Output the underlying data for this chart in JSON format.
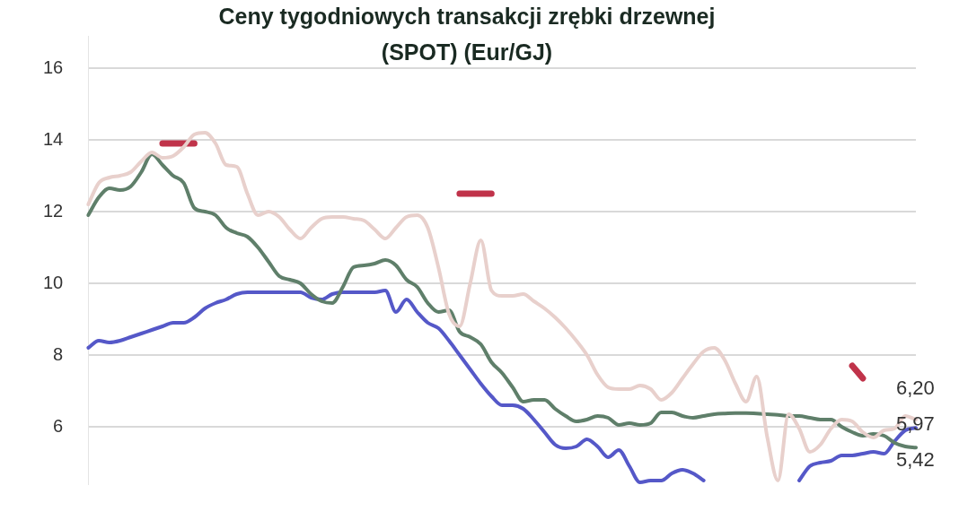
{
  "chart_data": {
    "type": "line",
    "title": "Ceny tygodniowych transakcji zrębki drzewnej\n(SPOT) (Eur/GJ)",
    "categories": [
      null,
      null,
      null,
      null,
      null,
      null,
      null,
      null,
      null,
      null,
      null,
      null,
      null,
      null,
      null,
      null,
      null,
      null,
      null,
      null,
      null,
      null,
      null,
      null,
      null,
      null,
      null,
      null,
      null,
      null,
      null,
      null,
      null,
      null,
      null,
      null,
      null,
      null,
      null,
      null,
      null,
      null,
      null,
      null,
      null,
      null,
      null,
      null,
      null,
      null,
      null,
      null,
      null,
      null,
      null,
      null,
      null,
      null,
      null,
      null,
      null,
      null,
      null,
      null,
      null,
      null,
      null,
      null,
      null,
      null,
      null,
      null,
      null,
      null,
      null,
      null,
      null,
      null,
      null
    ],
    "series": [
      {
        "color": "#e8d0cc",
        "values": [
          12.2,
          12.8,
          12.95,
          13.0,
          13.1,
          13.4,
          13.65,
          13.5,
          13.55,
          13.8,
          14.15,
          14.2,
          13.9,
          13.3,
          13.25,
          12.5,
          11.9,
          12.0,
          11.85,
          11.5,
          11.25,
          11.55,
          11.8,
          11.85,
          11.85,
          11.8,
          11.75,
          11.5,
          11.25,
          11.55,
          11.85,
          11.9,
          11.55,
          10.45,
          9.15,
          8.8,
          10.0,
          11.2,
          9.8,
          9.65,
          9.65,
          9.7,
          9.5,
          9.3,
          9.05,
          8.75,
          8.4,
          8.0,
          7.45,
          7.1,
          7.05,
          7.05,
          7.15,
          7.05,
          6.75,
          6.95,
          7.35,
          7.75,
          8.1,
          8.2,
          7.85,
          7.2,
          6.7,
          7.4,
          5.7,
          4.5,
          6.35,
          5.95,
          5.3,
          5.5,
          5.95,
          6.2,
          6.15,
          5.85,
          5.7,
          5.9,
          5.95,
          6.3,
          6.2
        ],
        "value_labels": [
          null,
          null,
          null,
          null,
          null,
          null,
          null,
          null,
          null,
          null,
          null,
          null,
          null,
          null,
          null,
          null,
          null,
          null,
          null,
          null,
          null,
          null,
          null,
          null,
          null,
          null,
          null,
          null,
          null,
          null,
          null,
          null,
          null,
          null,
          null,
          null,
          null,
          null,
          null,
          null,
          null,
          null,
          null,
          null,
          null,
          null,
          null,
          null,
          null,
          null,
          null,
          null,
          null,
          null,
          null,
          null,
          null,
          null,
          null,
          null,
          null,
          null,
          null,
          null,
          null,
          null,
          null,
          null,
          null,
          null,
          null,
          null,
          null,
          null,
          null,
          null,
          null,
          null,
          "6,20"
        ]
      },
      {
        "color": "#5f7f6a",
        "values": [
          11.9,
          12.4,
          12.65,
          12.6,
          12.7,
          13.1,
          13.6,
          13.3,
          13.0,
          12.8,
          12.1,
          12.0,
          11.9,
          11.55,
          11.4,
          11.3,
          11.0,
          10.6,
          10.2,
          10.1,
          10.0,
          9.7,
          9.5,
          9.45,
          9.9,
          10.45,
          10.5,
          10.55,
          10.65,
          10.5,
          10.1,
          9.9,
          9.45,
          9.2,
          9.25,
          8.65,
          8.5,
          8.3,
          7.8,
          7.5,
          7.1,
          6.7,
          6.75,
          6.75,
          6.5,
          6.3,
          6.15,
          6.2,
          6.3,
          6.25,
          6.05,
          6.1,
          6.05,
          6.1,
          6.4,
          6.4,
          6.3,
          6.25,
          6.3,
          6.35,
          6.37,
          6.38,
          6.38,
          6.37,
          6.35,
          6.33,
          6.3,
          6.3,
          6.25,
          6.2,
          6.2,
          6.0,
          5.85,
          5.75,
          5.8,
          5.75,
          5.55,
          5.45,
          5.42
        ],
        "value_labels": [
          null,
          null,
          null,
          null,
          null,
          null,
          null,
          null,
          null,
          null,
          null,
          null,
          null,
          null,
          null,
          null,
          null,
          null,
          null,
          null,
          null,
          null,
          null,
          null,
          null,
          null,
          null,
          null,
          null,
          null,
          null,
          null,
          null,
          null,
          null,
          null,
          null,
          null,
          null,
          null,
          null,
          null,
          null,
          null,
          null,
          null,
          null,
          null,
          null,
          null,
          null,
          null,
          null,
          null,
          null,
          null,
          null,
          null,
          null,
          null,
          null,
          null,
          null,
          null,
          null,
          null,
          null,
          null,
          null,
          null,
          null,
          null,
          null,
          null,
          null,
          null,
          null,
          null,
          "5,42"
        ]
      },
      {
        "color": "#5558c8",
        "values": [
          8.2,
          8.4,
          8.35,
          8.4,
          8.5,
          8.6,
          8.7,
          8.8,
          8.9,
          8.9,
          9.05,
          9.3,
          9.45,
          9.55,
          9.7,
          9.75,
          9.75,
          9.75,
          9.75,
          9.75,
          9.75,
          9.6,
          9.55,
          9.7,
          9.75,
          9.75,
          9.75,
          9.75,
          9.8,
          9.2,
          9.55,
          9.2,
          8.9,
          8.75,
          8.4,
          8.0,
          7.6,
          7.2,
          6.85,
          6.6,
          6.6,
          6.5,
          6.2,
          5.85,
          5.5,
          5.4,
          5.45,
          5.65,
          5.45,
          5.15,
          5.35,
          4.9,
          4.45,
          4.5,
          4.5,
          4.7,
          4.8,
          4.7,
          4.5,
          null,
          null,
          null,
          null,
          null,
          null,
          null,
          null,
          4.5,
          4.9,
          5.0,
          5.05,
          5.2,
          5.2,
          5.25,
          5.3,
          5.25,
          5.6,
          5.9,
          5.97
        ],
        "value_labels": [
          null,
          null,
          null,
          null,
          null,
          null,
          null,
          null,
          null,
          null,
          null,
          null,
          null,
          null,
          null,
          null,
          null,
          null,
          null,
          null,
          null,
          null,
          null,
          null,
          null,
          null,
          null,
          null,
          null,
          null,
          null,
          null,
          null,
          null,
          null,
          null,
          null,
          null,
          null,
          null,
          null,
          null,
          null,
          null,
          null,
          null,
          null,
          null,
          null,
          null,
          null,
          null,
          null,
          null,
          null,
          null,
          null,
          null,
          null,
          null,
          null,
          null,
          null,
          null,
          null,
          null,
          null,
          null,
          null,
          null,
          null,
          null,
          null,
          null,
          null,
          null,
          null,
          null,
          "5,97"
        ]
      },
      {
        "color": "#c0334a",
        "values": [
          null,
          null,
          null,
          null,
          null,
          null,
          null,
          13.9,
          13.9,
          13.9,
          13.9,
          null,
          null,
          null,
          null,
          null,
          null,
          null,
          null,
          null,
          null,
          null,
          null,
          null,
          null,
          null,
          null,
          null,
          null,
          null,
          null,
          null,
          null,
          null,
          null,
          12.5,
          12.5,
          12.5,
          12.5,
          null,
          null,
          null,
          null,
          null,
          null,
          null,
          null,
          null,
          null,
          null,
          null,
          null,
          null,
          null,
          null,
          null,
          null,
          null,
          null,
          null,
          null,
          null,
          null,
          null,
          null,
          null,
          null,
          null,
          null,
          null,
          null,
          null,
          7.7,
          7.35,
          null,
          null,
          null,
          null,
          null
        ]
      }
    ],
    "ylim": [
      4.4,
      16.9
    ],
    "yticks": [
      6,
      8,
      10,
      12,
      14,
      16
    ],
    "grid": "y",
    "legend": false,
    "tick_labels": "y",
    "marker": "none",
    "line_style": "solid"
  }
}
